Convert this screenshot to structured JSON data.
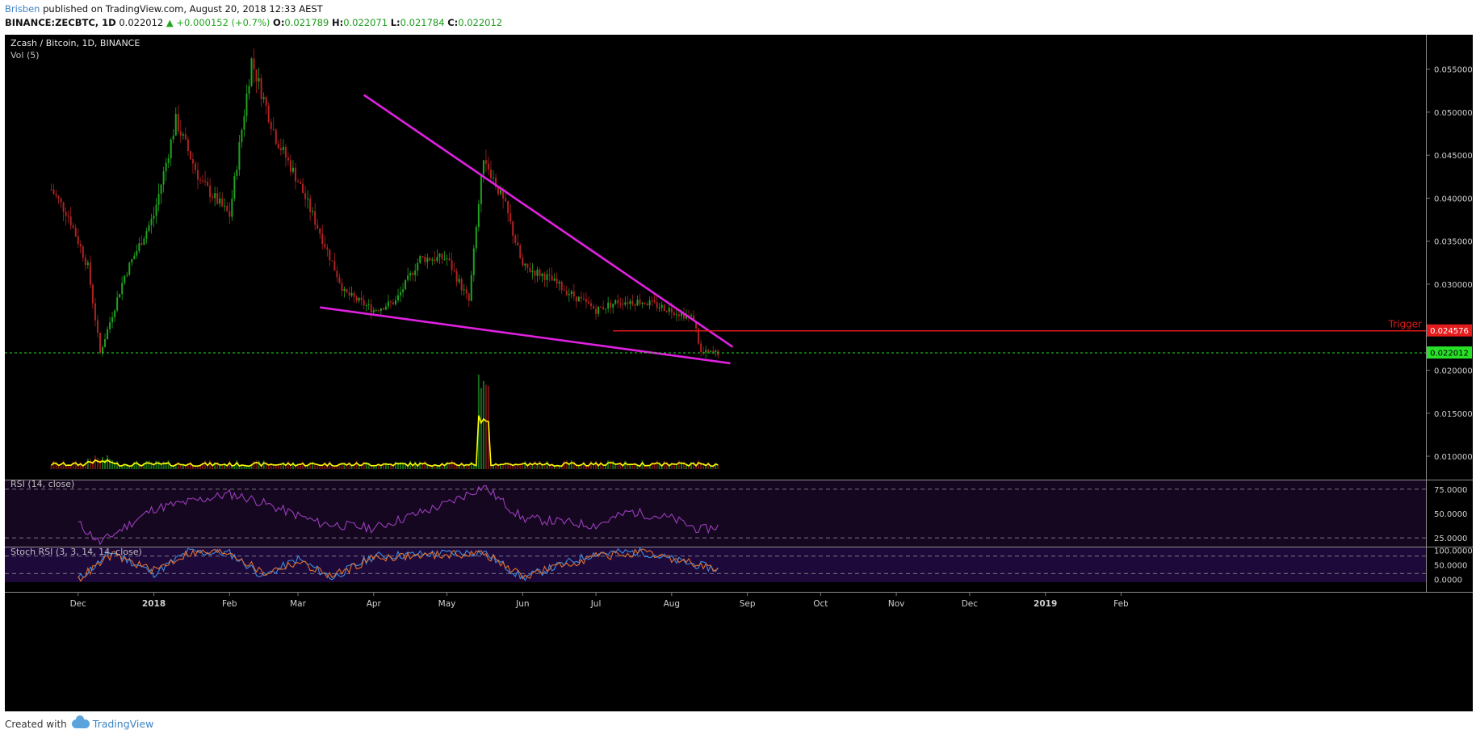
{
  "header": {
    "author": "Brisben",
    "published": "published on TradingView.com, August 20, 2018 12:33 AEST",
    "symbol": "BINANCE:ZECBTC, 1D",
    "last": "0.022012",
    "change": "▲ +0.000152 (+0.7%)",
    "o_label": "O:",
    "o": "0.021789",
    "h_label": "H:",
    "h": "0.022071",
    "l_label": "L:",
    "l": "0.021784",
    "c_label": "C:",
    "c": "0.022012"
  },
  "pane": {
    "title": "Zcash / Bitcoin, 1D, BINANCE",
    "vol_label": "Vol (5)",
    "rsi_label": "RSI (14, close)",
    "stoch_label": "Stoch RSI (3, 3, 14, 14, close)",
    "trigger_label": "Trigger",
    "trigger_value": "0.024576",
    "last_value": "0.022012"
  },
  "footer": {
    "created_with": "Created with",
    "brand": "TradingView"
  },
  "colors": {
    "up": "#1fa21f",
    "down": "#b02222",
    "trendline": "#e021e0",
    "trigger": "#dd1a1a",
    "last": "#22dd22",
    "volume_ma": "#ffff00",
    "rsi": "#9b3dbb",
    "stoch_k": "#3d8be0",
    "stoch_d": "#e0702a"
  },
  "chart_data": [
    {
      "type": "line",
      "title": "Zcash / Bitcoin, 1D, BINANCE",
      "x": [
        "2017-11-20",
        "2017-11-27",
        "2017-12-05",
        "2017-12-10",
        "2017-12-20",
        "2018-01-01",
        "2018-01-10",
        "2018-01-20",
        "2018-02-01",
        "2018-02-10",
        "2018-02-20",
        "2018-03-01",
        "2018-03-10",
        "2018-03-20",
        "2018-04-01",
        "2018-04-10",
        "2018-04-20",
        "2018-05-01",
        "2018-05-10",
        "2018-05-16",
        "2018-05-25",
        "2018-06-01",
        "2018-06-10",
        "2018-06-20",
        "2018-07-01",
        "2018-07-10",
        "2018-07-20",
        "2018-08-01",
        "2018-08-10",
        "2018-08-13",
        "2018-08-20"
      ],
      "series": [
        {
          "values": [
            0.041,
            0.038,
            0.032,
            0.022,
            0.031,
            0.038,
            0.049,
            0.042,
            0.038,
            0.056,
            0.047,
            0.042,
            0.036,
            0.029,
            0.027,
            0.028,
            0.033,
            0.033,
            0.028,
            0.045,
            0.039,
            0.032,
            0.031,
            0.029,
            0.027,
            0.028,
            0.028,
            0.027,
            0.026,
            0.022,
            0.022012
          ]
        }
      ],
      "ylim": [
        0.0085,
        0.059
      ],
      "yticks": [
        "0.055000",
        "0.050000",
        "0.045000",
        "0.040000",
        "0.035000",
        "0.030000",
        "0.025000",
        "0.020000",
        "0.015000",
        "0.010000"
      ],
      "xticks": [
        "Dec",
        "2018",
        "Feb",
        "Mar",
        "Apr",
        "May",
        "Jun",
        "Jul",
        "Aug",
        "Sep",
        "Oct",
        "Nov",
        "Dec",
        "2019",
        "Feb"
      ],
      "annotations": [
        {
          "text": "Trigger",
          "y": 0.024576
        },
        {
          "text": "0.022012",
          "y": 0.022012
        }
      ],
      "trendlines": [
        {
          "from": [
            "2018-03-28",
            0.052
          ],
          "to": [
            "2018-08-26",
            0.0227
          ]
        },
        {
          "from": [
            "2018-03-10",
            0.0273
          ],
          "to": [
            "2018-08-25",
            0.0208
          ]
        }
      ]
    },
    {
      "type": "line",
      "title": "RSI (14, close)",
      "x": [
        "2017-12-01",
        "2017-12-10",
        "2018-01-01",
        "2018-02-01",
        "2018-02-10",
        "2018-03-10",
        "2018-04-01",
        "2018-05-01",
        "2018-05-16",
        "2018-06-01",
        "2018-07-01",
        "2018-07-15",
        "2018-08-01",
        "2018-08-13",
        "2018-08-20"
      ],
      "series": [
        {
          "values": [
            40,
            20,
            55,
            70,
            65,
            40,
            35,
            60,
            78,
            45,
            38,
            52,
            45,
            33,
            37
          ]
        }
      ],
      "ylim": [
        16,
        84
      ],
      "yticks": [
        "75.0000",
        "50.0000",
        "25.0000"
      ]
    },
    {
      "type": "line",
      "title": "Stoch RSI (3, 3, 14, 14, close)",
      "x": [
        "2017-12-01",
        "2017-12-15",
        "2018-01-01",
        "2018-01-15",
        "2018-02-01",
        "2018-02-15",
        "2018-03-01",
        "2018-03-15",
        "2018-04-01",
        "2018-05-01",
        "2018-05-16",
        "2018-06-01",
        "2018-07-01",
        "2018-07-20",
        "2018-08-05",
        "2018-08-20"
      ],
      "series": [
        {
          "values": [
            0,
            95,
            20,
            95,
            90,
            10,
            70,
            5,
            80,
            90,
            95,
            5,
            90,
            95,
            60,
            35
          ]
        },
        {
          "values": [
            0,
            85,
            30,
            90,
            95,
            20,
            60,
            10,
            75,
            85,
            90,
            10,
            80,
            90,
            65,
            30
          ]
        }
      ],
      "ylim": [
        -10,
        110
      ],
      "yticks": [
        "100.0000",
        "50.0000",
        "0.0000"
      ]
    }
  ]
}
